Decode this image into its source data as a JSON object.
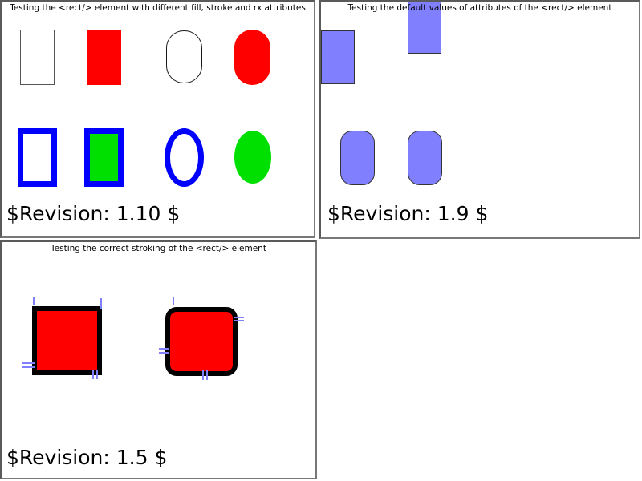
{
  "colors": {
    "red": "#ff0000",
    "green": "#00e000",
    "blue": "#0000ff",
    "purple": "#8080ff",
    "tick_blue": "#8080ff",
    "stroke_black": "#000000",
    "panel_border": "#787878",
    "text": "#000000"
  },
  "panels": {
    "fill_stroke_rx": {
      "title": "Testing the <rect/> element with different fill, stroke and rx attributes",
      "revision": "$Revision: 1.10 $",
      "shapes": [
        {
          "kind": "rect",
          "fill": "white",
          "stroke": "black"
        },
        {
          "kind": "rect",
          "fill": "red",
          "stroke": "none"
        },
        {
          "kind": "rect rounded (capsule)",
          "fill": "white",
          "stroke": "black"
        },
        {
          "kind": "rect rounded (capsule)",
          "fill": "red",
          "stroke": "none"
        },
        {
          "kind": "rect",
          "fill": "white",
          "stroke": "blue thick"
        },
        {
          "kind": "rect",
          "fill": "green",
          "stroke": "blue thick"
        },
        {
          "kind": "rect fully rounded (ellipse)",
          "fill": "white",
          "stroke": "blue thick"
        },
        {
          "kind": "rect fully rounded (ellipse)",
          "fill": "green",
          "stroke": "none"
        }
      ]
    },
    "default_values": {
      "title": "Testing the default values of attributes of the <rect/> element",
      "revision": "$Revision: 1.9 $",
      "shapes": [
        {
          "kind": "rect",
          "fill": "purple",
          "stroke": "thin black",
          "note": "clipped at panel left edge"
        },
        {
          "kind": "rect",
          "fill": "purple",
          "stroke": "thin black",
          "note": "overlaps title text at panel top"
        },
        {
          "kind": "rect rounded",
          "fill": "purple",
          "stroke": "thin black"
        },
        {
          "kind": "rect rounded",
          "fill": "purple",
          "stroke": "thin black"
        }
      ]
    },
    "stroking": {
      "title": "Testing the correct stroking of the <rect/> element",
      "revision": "$Revision: 1.5 $",
      "shapes": [
        {
          "kind": "square",
          "fill": "red",
          "stroke": "thick black",
          "markers": "blue reference ticks at corners"
        },
        {
          "kind": "square rounded",
          "fill": "red",
          "stroke": "thick black",
          "markers": "blue reference ticks at corners"
        }
      ]
    }
  }
}
